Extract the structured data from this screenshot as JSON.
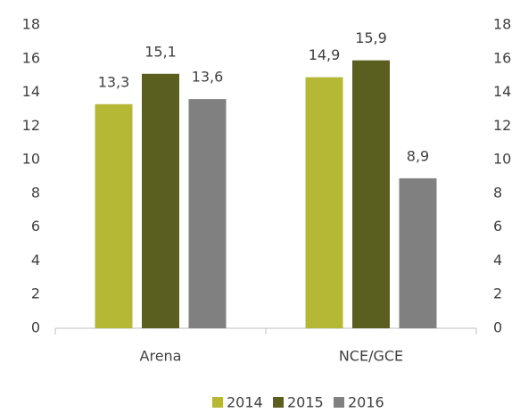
{
  "chart_data": {
    "type": "bar",
    "categories": [
      "Arena",
      "NCE/GCE"
    ],
    "series": [
      {
        "name": "2014",
        "color": "#b5b835",
        "values": [
          13.3,
          14.9
        ],
        "value_labels": [
          "13,3",
          "14,9"
        ]
      },
      {
        "name": "2015",
        "color": "#5a5e1f",
        "values": [
          15.1,
          15.9
        ],
        "value_labels": [
          "15,1",
          "15,9"
        ]
      },
      {
        "name": "2016",
        "color": "#808080",
        "values": [
          13.6,
          8.9
        ],
        "value_labels": [
          "13,6",
          "8,9"
        ]
      }
    ],
    "ylim": [
      0,
      18
    ],
    "yticks": [
      0,
      2,
      4,
      6,
      8,
      10,
      12,
      14,
      16,
      18
    ],
    "y2lim": [
      0,
      18
    ],
    "y2ticks": [
      0,
      2,
      4,
      6,
      8,
      10,
      12,
      14,
      16,
      18
    ],
    "grid": false,
    "legend": "bottom"
  }
}
